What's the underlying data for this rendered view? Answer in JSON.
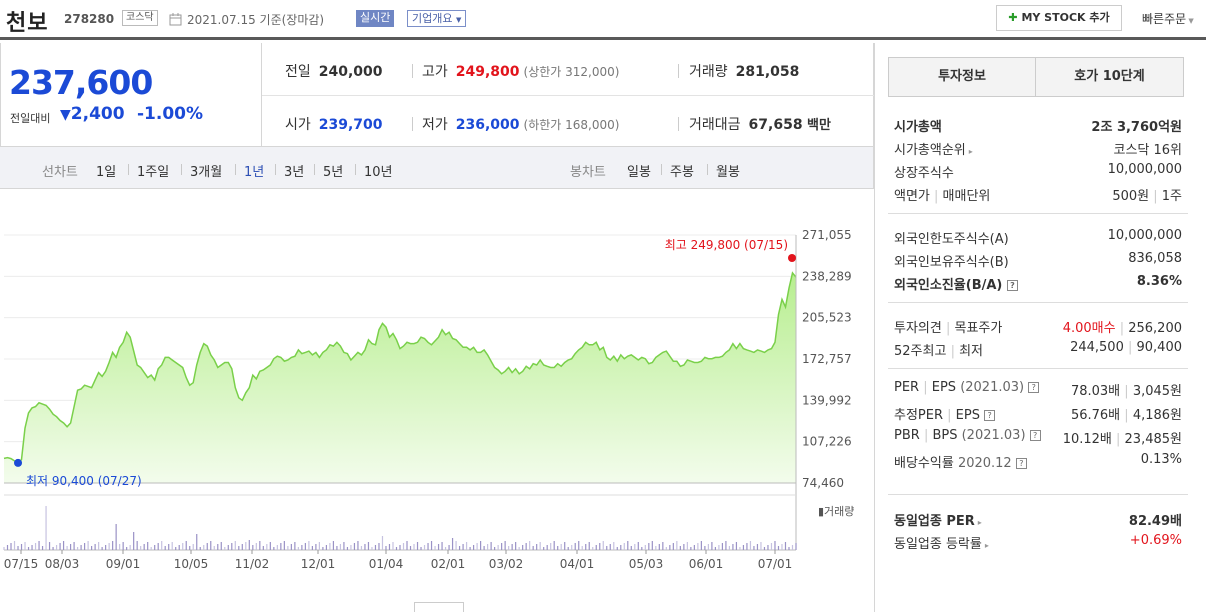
{
  "header": {
    "name": "천보",
    "code": "278280",
    "market": "코스닥",
    "date": "2021.07.15",
    "basis": "기준(장마감)",
    "realtime": "실시간",
    "overview": "기업개요",
    "mystock": "MY STOCK 추가",
    "quick_order": "빠른주문"
  },
  "price": {
    "current": "237,600",
    "change_label": "전일대비",
    "change": "2,400",
    "change_pct": "-1.00%"
  },
  "quotes": {
    "prev_label": "전일",
    "prev": "240,000",
    "high_label": "고가",
    "high": "249,800",
    "upper_limit": "(상한가 312,000)",
    "volume_label": "거래량",
    "volume": "281,058",
    "open_label": "시가",
    "open": "239,700",
    "low_label": "저가",
    "low": "236,000",
    "lower_limit": "(하한가 168,000)",
    "amount_label": "거래대금",
    "amount": "67,658",
    "amount_unit": "백만"
  },
  "period": {
    "line_label": "선차트",
    "line_items": [
      "1일",
      "1주일",
      "3개월",
      "1년",
      "3년",
      "5년",
      "10년"
    ],
    "active": "1년",
    "candle_label": "봉차트",
    "candle_items": [
      "일봉",
      "주봉",
      "월봉"
    ]
  },
  "chart_data": {
    "type": "area",
    "x_ticks": [
      "07/15",
      "08/03",
      "09/01",
      "10/05",
      "11/02",
      "12/01",
      "01/04",
      "02/01",
      "03/02",
      "04/01",
      "05/03",
      "06/01",
      "07/01"
    ],
    "y_ticks": [
      "271,055",
      "238,289",
      "205,523",
      "172,757",
      "139,992",
      "107,226",
      "74,460"
    ],
    "ylim": [
      74460,
      271055
    ],
    "max_annotation": "최고 249,800 (07/15)",
    "min_annotation": "최저 90,400 (07/27)",
    "volume_label": "거래량",
    "values": [
      94000,
      94500,
      93800,
      92000,
      90400,
      93000,
      118000,
      130000,
      134000,
      135000,
      138000,
      137000,
      136000,
      133000,
      129000,
      127000,
      124000,
      122000,
      119000,
      122000,
      135000,
      148000,
      149000,
      152000,
      151000,
      150000,
      156000,
      162000,
      159000,
      163000,
      170000,
      178000,
      174000,
      182000,
      186000,
      194000,
      190000,
      179000,
      168000,
      166000,
      162000,
      158000,
      160000,
      156000,
      165000,
      168000,
      174000,
      174000,
      172000,
      170000,
      168000,
      166000,
      158000,
      152000,
      154000,
      168000,
      178000,
      185000,
      183000,
      176000,
      172000,
      166000,
      168000,
      170000,
      170000,
      165000,
      150000,
      142000,
      140000,
      146000,
      150000,
      160000,
      157000,
      163000,
      164000,
      166000,
      168000,
      173000,
      175000,
      174000,
      171000,
      172000,
      174000,
      175000,
      180000,
      177000,
      178000,
      179000,
      176000,
      178000,
      174000,
      178000,
      180000,
      184000,
      183000,
      186000,
      183000,
      178000,
      177000,
      172000,
      175000,
      178000,
      176000,
      180000,
      188000,
      185000,
      184000,
      196000,
      201000,
      198000,
      190000,
      193000,
      188000,
      181000,
      183000,
      186000,
      185000,
      185000,
      186000,
      190000,
      189000,
      186000,
      184000,
      187000,
      190000,
      196000,
      192000,
      194000,
      189000,
      188000,
      185000,
      182000,
      182000,
      180000,
      182000,
      178000,
      178000,
      180000,
      176000,
      171000,
      166000,
      164000,
      161000,
      163000,
      166000,
      162000,
      165000,
      161000,
      163000,
      167000,
      165000,
      169000,
      168000,
      172000,
      168000,
      167000,
      166000,
      166000,
      169000,
      167000,
      170000,
      172000,
      173000,
      177000,
      180000,
      182000,
      186000,
      184000,
      184000,
      186000,
      180000,
      182000,
      174000,
      172000,
      175000,
      171000,
      176000,
      173000,
      175000,
      176000,
      174000,
      172000,
      174000,
      173000,
      169000,
      170000,
      174000,
      176000,
      178000,
      179000,
      175000,
      171000,
      171000,
      167000,
      168000,
      172000,
      171000,
      170000,
      170000,
      171000,
      174000,
      173000,
      173000,
      174000,
      174000,
      175000,
      178000,
      180000,
      185000,
      181000,
      185000,
      181000,
      180000,
      179000,
      178000,
      180000,
      179000,
      178000,
      180000,
      181000,
      186000,
      208000,
      220000,
      214000,
      229000,
      241000,
      237600
    ]
  },
  "right_panel": {
    "tabs": [
      "투자정보",
      "호가 10단계"
    ],
    "g1": [
      {
        "k": "시가총액",
        "v": "2조 3,760억원",
        "bold": true
      },
      {
        "k": "시가총액순위",
        "v": "코스닥 16위",
        "arrow": true
      },
      {
        "k": "상장주식수",
        "v": "10,000,000"
      },
      {
        "k": "액면가",
        "k2": "매매단위",
        "v": "500원",
        "v2": "1주"
      }
    ],
    "g2": [
      {
        "k": "외국인한도주식수(A)",
        "v": "10,000,000"
      },
      {
        "k": "외국인보유주식수(B)",
        "v": "836,058"
      },
      {
        "k": "외국인소진율(B/A)",
        "v": "8.36%",
        "bold": true,
        "help": true
      }
    ],
    "g3": [
      {
        "k": "투자의견",
        "k2": "목표주가",
        "v": "4.00매수",
        "v2": "256,200",
        "vred": true
      },
      {
        "k": "52주최고",
        "k2": "최저",
        "v": "244,500",
        "v2": "90,400"
      }
    ],
    "g4": [
      {
        "k": "PER",
        "k2": "EPS",
        "k3": "(2021.03)",
        "v": "78.03배",
        "v2": "3,045원",
        "help": true
      },
      {
        "k": "추정PER",
        "k2": "EPS",
        "v": "56.76배",
        "v2": "4,186원",
        "help": true
      },
      {
        "k": "PBR",
        "k2": "BPS",
        "k3": "(2021.03)",
        "v": "10.12배",
        "v2": "23,485원",
        "help": true
      },
      {
        "k": "배당수익률",
        "k3": "2020.12",
        "v": "0.13%",
        "help": true
      }
    ],
    "g5": [
      {
        "k": "동일업종 PER",
        "v": "82.49배",
        "bold": true,
        "arrow": true
      },
      {
        "k": "동일업종 등락률",
        "v": "+0.69%",
        "vred": true,
        "arrow": true
      }
    ]
  }
}
